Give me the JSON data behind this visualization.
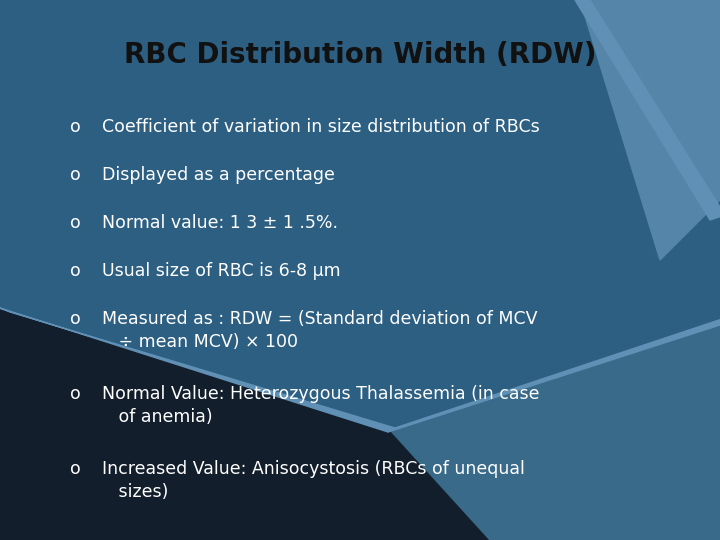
{
  "title": "RBC Distribution Width (RDW)",
  "title_fontsize": 20,
  "title_color": "#111111",
  "bullet_points": [
    "Coefficient of variation in size distribution of RBCs",
    "Displayed as a percentage",
    "Normal value: 1 3 ± 1 .5%.",
    "Usual size of RBC is 6-8 μm",
    "Measured as : RDW = (Standard deviation of MCV\n   ÷ mean MCV) × 100",
    "Normal Value: Heterozygous Thalassemia (in case\n   of anemia)",
    "Increased Value: Anisocystosis (RBCs of unequal\n   sizes)"
  ],
  "text_color": "#ffffff",
  "bullet_fontsize": 12.5,
  "bullet_symbol": "o",
  "bg_main": "#2d5f82",
  "bg_darker": "#1e3a50",
  "bg_dark_left": "#131e2c",
  "bg_mid_right": "#3a6a8a",
  "bg_light_stripe": "#5080a0",
  "top_right_light": "#5585a8"
}
